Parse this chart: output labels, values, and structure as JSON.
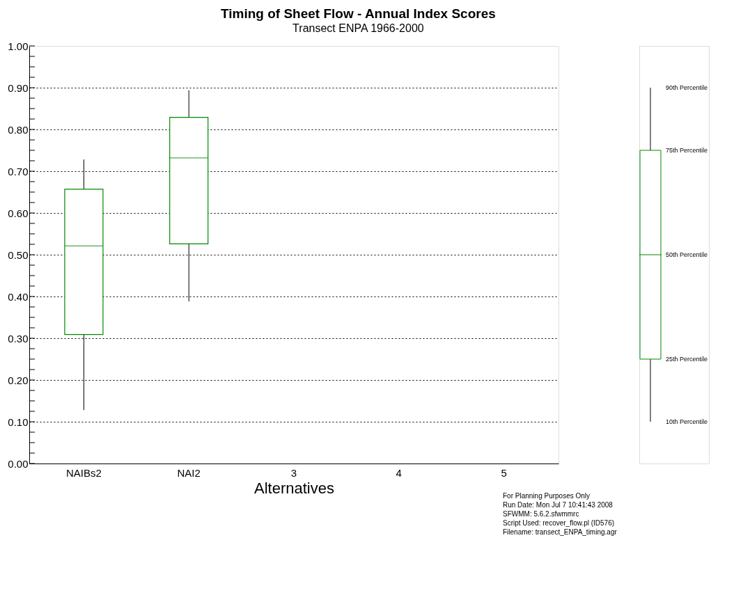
{
  "chart_data": {
    "type": "box",
    "title": "Timing of Sheet Flow - Annual Index Scores",
    "subtitle": "Transect ENPA 1966-2000",
    "xlabel": "Alternatives",
    "categories": [
      "NAIBs2",
      "NAI2",
      "3",
      "4",
      "5"
    ],
    "series": [
      {
        "color": "#008800",
        "boxes": [
          {
            "low": 0.128,
            "q1": 0.309,
            "median": 0.521,
            "q3": 0.657,
            "high": 0.728
          },
          {
            "low": 0.388,
            "q1": 0.526,
            "median": 0.732,
            "q3": 0.829,
            "high": 0.894
          },
          null,
          null,
          null
        ]
      }
    ],
    "ylim": [
      0,
      1
    ],
    "yticks": [
      {
        "value": 0,
        "label": "0.00"
      },
      {
        "value": 0.025,
        "label": null
      },
      {
        "value": 0.05,
        "label": null
      },
      {
        "value": 0.075,
        "label": null
      },
      {
        "value": 0.1,
        "label": "0.10"
      },
      {
        "value": 0.125,
        "label": null
      },
      {
        "value": 0.15,
        "label": null
      },
      {
        "value": 0.175,
        "label": null
      },
      {
        "value": 0.2,
        "label": "0.20"
      },
      {
        "value": 0.225,
        "label": null
      },
      {
        "value": 0.25,
        "label": null
      },
      {
        "value": 0.275,
        "label": null
      },
      {
        "value": 0.3,
        "label": "0.30"
      },
      {
        "value": 0.325,
        "label": null
      },
      {
        "value": 0.35,
        "label": null
      },
      {
        "value": 0.375,
        "label": null
      },
      {
        "value": 0.4,
        "label": "0.40"
      },
      {
        "value": 0.425,
        "label": null
      },
      {
        "value": 0.45,
        "label": null
      },
      {
        "value": 0.475,
        "label": null
      },
      {
        "value": 0.5,
        "label": "0.50"
      },
      {
        "value": 0.525,
        "label": null
      },
      {
        "value": 0.55,
        "label": null
      },
      {
        "value": 0.575,
        "label": null
      },
      {
        "value": 0.6,
        "label": "0.60"
      },
      {
        "value": 0.625,
        "label": null
      },
      {
        "value": 0.65,
        "label": null
      },
      {
        "value": 0.675,
        "label": null
      },
      {
        "value": 0.7,
        "label": "0.70"
      },
      {
        "value": 0.725,
        "label": null
      },
      {
        "value": 0.75,
        "label": null
      },
      {
        "value": 0.775,
        "label": null
      },
      {
        "value": 0.8,
        "label": "0.80"
      },
      {
        "value": 0.825,
        "label": null
      },
      {
        "value": 0.85,
        "label": null
      },
      {
        "value": 0.875,
        "label": null
      },
      {
        "value": 0.9,
        "label": "0.90"
      },
      {
        "value": 0.925,
        "label": null
      },
      {
        "value": 0.95,
        "label": null
      },
      {
        "value": 0.975,
        "label": null
      },
      {
        "value": 1,
        "label": "1.00"
      }
    ],
    "grid": "y",
    "annotations": [
      "90th Percentile",
      "75th Percentile",
      "50th Percentile",
      "25th Percentile",
      "10th Percentile",
      "For Planning Purposes Only",
      "Run Date: Mon Jul  7 10:41:43 2008",
      "SFWMM: 5.6.2.sfwmmrc",
      "Script Used: recover_flow.pl (ID576)",
      "Filename: transect_ENPA_timing.agr"
    ]
  }
}
